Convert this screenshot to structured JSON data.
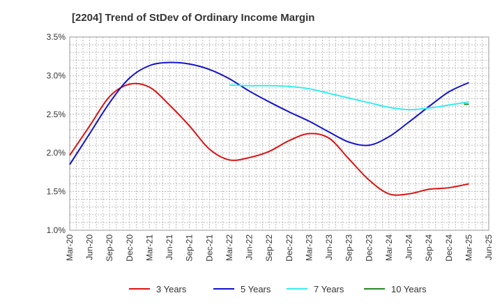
{
  "chart_data": {
    "type": "line",
    "title": "[2204]  Trend of StDev of Ordinary Income Margin",
    "xlabel": "",
    "ylabel": "",
    "x_ticks": [
      "Mar-20",
      "Jun-20",
      "Sep-20",
      "Dec-20",
      "Mar-21",
      "Jun-21",
      "Sep-21",
      "Dec-21",
      "Mar-22",
      "Jun-22",
      "Sep-22",
      "Dec-22",
      "Mar-23",
      "Jun-23",
      "Sep-23",
      "Dec-23",
      "Mar-24",
      "Jun-24",
      "Sep-24",
      "Dec-24",
      "Mar-25",
      "Jun-25"
    ],
    "y_ticks": [
      "1.0%",
      "1.5%",
      "2.0%",
      "2.5%",
      "3.0%",
      "3.5%"
    ],
    "ylim": [
      1.0,
      3.5
    ],
    "grid": true,
    "legend_position": "bottom",
    "series": [
      {
        "name": "3 Years",
        "color": "#dd1111",
        "x": [
          "Mar-20",
          "Jun-20",
          "Sep-20",
          "Dec-20",
          "Mar-21",
          "Jun-21",
          "Sep-21",
          "Dec-21",
          "Mar-22",
          "Jun-22",
          "Sep-22",
          "Dec-22",
          "Mar-23",
          "Jun-23",
          "Sep-23",
          "Dec-23",
          "Mar-24",
          "Jun-24",
          "Sep-24",
          "Dec-24",
          "Mar-25"
        ],
        "values": [
          1.97,
          2.35,
          2.73,
          2.89,
          2.85,
          2.62,
          2.35,
          2.05,
          1.91,
          1.94,
          2.02,
          2.16,
          2.25,
          2.19,
          1.92,
          1.65,
          1.47,
          1.47,
          1.53,
          1.55,
          1.6
        ]
      },
      {
        "name": "5 Years",
        "color": "#1111cc",
        "x": [
          "Mar-20",
          "Jun-20",
          "Sep-20",
          "Dec-20",
          "Mar-21",
          "Jun-21",
          "Sep-21",
          "Dec-21",
          "Mar-22",
          "Jun-22",
          "Sep-22",
          "Dec-22",
          "Mar-23",
          "Jun-23",
          "Sep-23",
          "Dec-23",
          "Mar-24",
          "Jun-24",
          "Sep-24",
          "Dec-24",
          "Mar-25"
        ],
        "values": [
          1.85,
          2.25,
          2.65,
          2.97,
          3.13,
          3.17,
          3.15,
          3.08,
          2.96,
          2.8,
          2.66,
          2.53,
          2.41,
          2.27,
          2.14,
          2.1,
          2.21,
          2.4,
          2.6,
          2.79,
          2.91
        ]
      },
      {
        "name": "7 Years",
        "color": "#33eeee",
        "x": [
          "Mar-22",
          "Jun-22",
          "Sep-22",
          "Dec-22",
          "Mar-23",
          "Jun-23",
          "Sep-23",
          "Dec-23",
          "Mar-24",
          "Jun-24",
          "Sep-24",
          "Dec-24",
          "Mar-25"
        ],
        "values": [
          2.88,
          2.87,
          2.87,
          2.86,
          2.83,
          2.77,
          2.71,
          2.65,
          2.59,
          2.56,
          2.58,
          2.62,
          2.66
        ]
      },
      {
        "name": "10 Years",
        "color": "#228822",
        "x": [
          "Mar-25"
        ],
        "values": [
          2.63
        ]
      }
    ]
  }
}
